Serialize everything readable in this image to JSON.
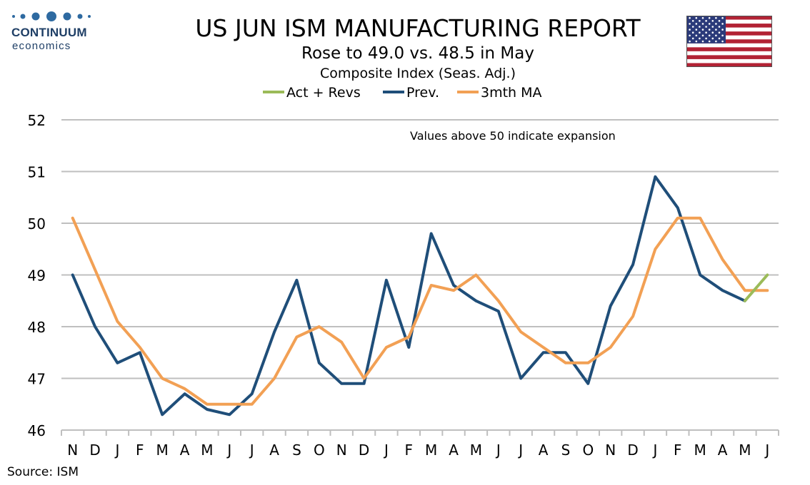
{
  "logo": {
    "name": "CONTINUUM",
    "sub": "economics",
    "dots_color": "#2e6aa1"
  },
  "header": {
    "title": "US JUN ISM MANUFACTURING REPORT",
    "subtitle": "Rose to 49.0 vs. 48.5 in May",
    "subtitle2": "Composite Index (Seas. Adj.)"
  },
  "flag_icon": "us-flag-icon",
  "annotation": "Values above 50 indicate expansion",
  "source": "Source: ISM",
  "chart_data": {
    "type": "line",
    "title": "US JUN ISM MANUFACTURING REPORT",
    "categories": [
      "N",
      "D",
      "J",
      "F",
      "M",
      "A",
      "M",
      "J",
      "J",
      "A",
      "S",
      "O",
      "N",
      "D",
      "J",
      "F",
      "M",
      "A",
      "M",
      "J",
      "J",
      "A",
      "S",
      "O",
      "N",
      "D",
      "J",
      "F",
      "M",
      "A",
      "M",
      "J"
    ],
    "ylim": [
      46,
      52
    ],
    "yticks": [
      46,
      47,
      48,
      49,
      50,
      51,
      52
    ],
    "grid": true,
    "legend_position": "top-center",
    "series": [
      {
        "name": "Act + Revs",
        "color": "#9bbb59",
        "values": [
          null,
          null,
          null,
          null,
          null,
          null,
          null,
          null,
          null,
          null,
          null,
          null,
          null,
          null,
          null,
          null,
          null,
          null,
          null,
          null,
          null,
          null,
          null,
          null,
          null,
          null,
          null,
          null,
          null,
          null,
          48.5,
          49.0
        ]
      },
      {
        "name": "Prev.",
        "color": "#1f4e79",
        "values": [
          49.0,
          48.0,
          47.3,
          47.5,
          46.3,
          46.7,
          46.4,
          46.3,
          46.7,
          47.9,
          48.9,
          47.3,
          46.9,
          46.9,
          48.9,
          47.6,
          49.8,
          48.8,
          48.5,
          48.3,
          47.0,
          47.5,
          47.5,
          46.9,
          48.4,
          49.2,
          50.9,
          50.3,
          49.0,
          48.7,
          48.5,
          null
        ]
      },
      {
        "name": "3mth MA",
        "color": "#f2a054",
        "values": [
          50.1,
          49.1,
          48.1,
          47.6,
          47.0,
          46.8,
          46.5,
          46.5,
          46.5,
          47.0,
          47.8,
          48.0,
          47.7,
          47.0,
          47.6,
          47.8,
          48.8,
          48.7,
          49.0,
          48.5,
          47.9,
          47.6,
          47.3,
          47.3,
          47.6,
          48.2,
          49.5,
          50.1,
          50.1,
          49.3,
          48.7,
          48.7
        ]
      }
    ]
  }
}
